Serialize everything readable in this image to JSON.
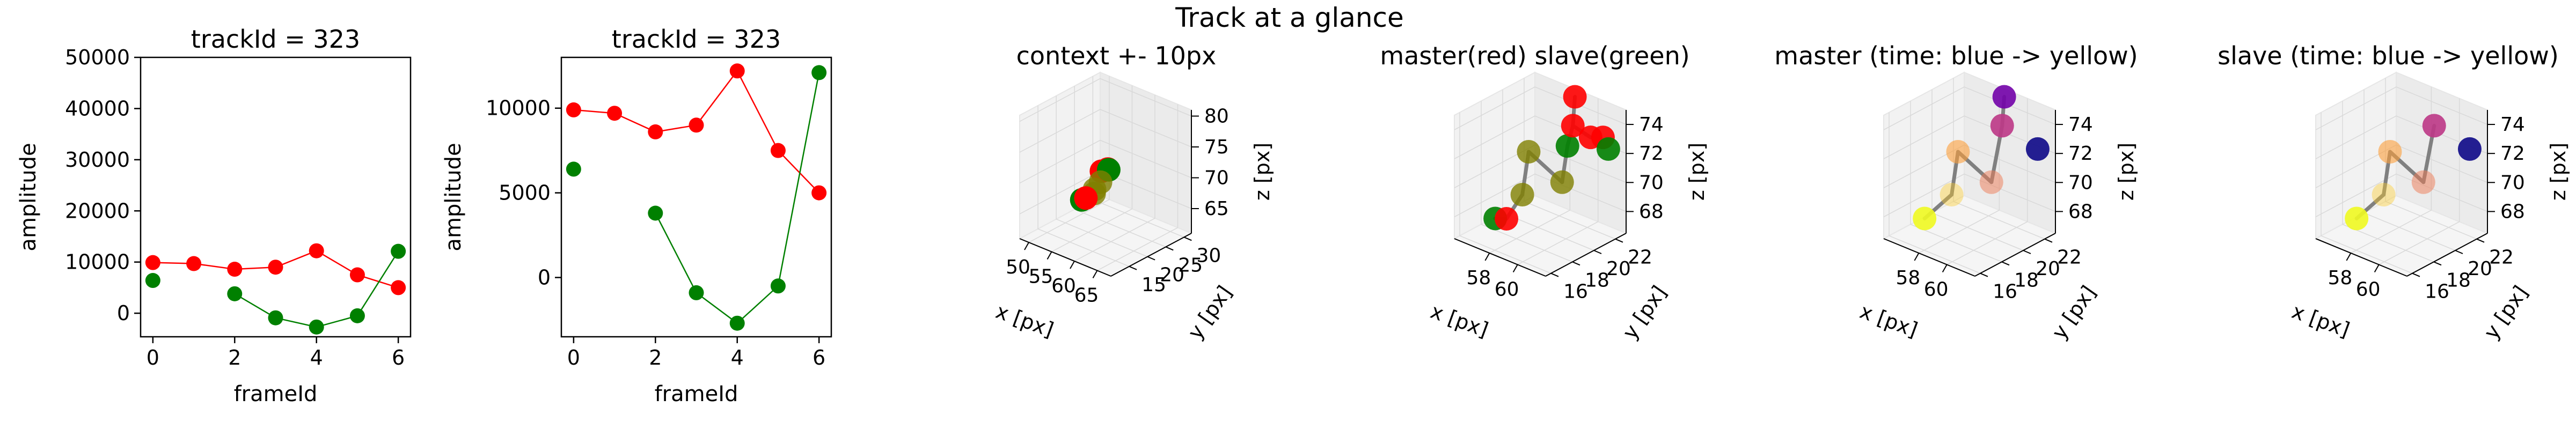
{
  "figure": {
    "suptitle": "Track at a glance"
  },
  "colors": {
    "master": "#ff0000",
    "slave": "#008000",
    "link": "#808080",
    "time_start": "#00008b",
    "time_end": "#ffff00"
  },
  "chart_data": [
    {
      "type": "line",
      "title": "trackId = 323",
      "xlabel": "frameId",
      "ylabel": "amplitude",
      "xlim": [
        -0.3,
        6.3
      ],
      "ylim": [
        -4600,
        50000
      ],
      "xticks": [
        0,
        2,
        4,
        6
      ],
      "yticks": [
        0,
        10000,
        20000,
        30000,
        40000,
        50000
      ],
      "series": [
        {
          "color": "#ff0000",
          "x": [
            0,
            1,
            2,
            3,
            4,
            5,
            6
          ],
          "y": [
            9900,
            9700,
            8600,
            9000,
            12200,
            7500,
            5000
          ]
        },
        {
          "color": "#008000",
          "x": [
            0,
            2,
            3,
            4,
            5,
            6
          ],
          "y": [
            6400,
            3800,
            -900,
            -2700,
            -500,
            12100
          ],
          "connect_from_index": 1
        }
      ]
    },
    {
      "type": "line",
      "title": "trackId = 323",
      "xlabel": "frameId",
      "ylabel": "amplitude",
      "xlim": [
        -0.3,
        6.3
      ],
      "ylim": [
        -3500,
        13000
      ],
      "xticks": [
        0,
        2,
        4,
        6
      ],
      "yticks": [
        0,
        5000,
        10000
      ],
      "series": [
        {
          "color": "#ff0000",
          "x": [
            0,
            1,
            2,
            3,
            4,
            5,
            6
          ],
          "y": [
            9900,
            9700,
            8600,
            9000,
            12200,
            7500,
            5000
          ]
        },
        {
          "color": "#008000",
          "x": [
            0,
            2,
            3,
            4,
            5,
            6
          ],
          "y": [
            6400,
            3800,
            -900,
            -2700,
            -500,
            12100
          ],
          "connect_from_index": 1
        }
      ]
    },
    {
      "type": "scatter",
      "projection": "3d",
      "title": "context +- 10px",
      "xlabel": "x [px]",
      "ylabel": "y [px]",
      "zlabel": "z [px]",
      "xlim": [
        48,
        68
      ],
      "ylim": [
        10,
        32
      ],
      "zlim": [
        61,
        81
      ],
      "xticks": [
        50,
        55,
        60,
        65
      ],
      "yticks": [
        15,
        20,
        25,
        30
      ],
      "zticks": [
        65,
        70,
        75,
        80
      ],
      "points": [
        {
          "x": 57.5,
          "y": 20.5,
          "z": 71.5,
          "color": "#ff0000",
          "alpha": 1.0
        },
        {
          "x": 58.5,
          "y": 21,
          "z": 72,
          "color": "#ff0000",
          "alpha": 1.0
        },
        {
          "x": 59.5,
          "y": 20,
          "z": 72.5,
          "color": "#008000",
          "alpha": 1.0
        },
        {
          "x": 58.5,
          "y": 19,
          "z": 70.5,
          "color": "#808000",
          "alpha": 0.8
        },
        {
          "x": 58,
          "y": 18,
          "z": 69.5,
          "color": "#808000",
          "alpha": 0.8
        },
        {
          "x": 57.5,
          "y": 18.5,
          "z": 68.5,
          "color": "#808000",
          "alpha": 0.8
        },
        {
          "x": 56,
          "y": 17,
          "z": 67.5,
          "color": "#008000",
          "alpha": 1.0
        },
        {
          "x": 56.5,
          "y": 17.5,
          "z": 67.8,
          "color": "#ff0000",
          "alpha": 1.0
        }
      ],
      "links": []
    },
    {
      "type": "scatter",
      "projection": "3d",
      "title": "master(red) slave(green)",
      "xlabel": "x [px]",
      "ylabel": "y [px]",
      "zlabel": "z [px]",
      "xlim": [
        55.5,
        62
      ],
      "ylim": [
        15.5,
        23
      ],
      "zlim": [
        66.5,
        75
      ],
      "xticks": [
        58,
        60
      ],
      "yticks": [
        16,
        18,
        20,
        22
      ],
      "zticks": [
        68,
        70,
        72,
        74
      ],
      "points": [
        {
          "x": 56.5,
          "y": 18,
          "z": 67.3,
          "color": "#008000",
          "alpha": 0.9
        },
        {
          "x": 57.3,
          "y": 18,
          "z": 67.6,
          "color": "#ff0000",
          "alpha": 0.9
        },
        {
          "x": 58.2,
          "y": 18.3,
          "z": 69.5,
          "color": "#808000",
          "alpha": 0.8
        },
        {
          "x": 58.5,
          "y": 18.5,
          "z": 72.5,
          "color": "#808000",
          "alpha": 0.8
        },
        {
          "x": 60.5,
          "y": 19,
          "z": 71,
          "color": "#808000",
          "alpha": 0.8
        },
        {
          "x": 60.5,
          "y": 19.5,
          "z": 73.3,
          "color": "#008000",
          "alpha": 0.9
        },
        {
          "x": 60.5,
          "y": 20,
          "z": 74.5,
          "color": "#ff0000",
          "alpha": 0.9
        },
        {
          "x": 61,
          "y": 21,
          "z": 73.5,
          "color": "#ff0000",
          "alpha": 0.9
        },
        {
          "x": 61.5,
          "y": 21.5,
          "z": 73.5,
          "color": "#ff0000",
          "alpha": 0.9
        },
        {
          "x": 59.5,
          "y": 21.5,
          "z": 75.5,
          "color": "#ff0000",
          "alpha": 0.9
        },
        {
          "x": 61.5,
          "y": 22,
          "z": 72.5,
          "color": "#008000",
          "alpha": 0.9
        }
      ],
      "links": [
        [
          0,
          1
        ],
        [
          1,
          2
        ],
        [
          2,
          3
        ],
        [
          3,
          4
        ],
        [
          4,
          5
        ],
        [
          5,
          6
        ],
        [
          6,
          9
        ],
        [
          6,
          7
        ]
      ]
    },
    {
      "type": "scatter",
      "projection": "3d",
      "title": "master (time: blue -> yellow)",
      "xlabel": "x [px]",
      "ylabel": "y [px]",
      "zlabel": "z [px]",
      "xlim": [
        55.5,
        62
      ],
      "ylim": [
        15.5,
        23
      ],
      "zlim": [
        66.5,
        75
      ],
      "xticks": [
        58,
        60
      ],
      "yticks": [
        16,
        18,
        20,
        22
      ],
      "zticks": [
        68,
        70,
        72,
        74
      ],
      "points": [
        {
          "x": 56.5,
          "y": 18,
          "z": 67.3,
          "color": "#f0f921",
          "alpha": 0.9
        },
        {
          "x": 58.2,
          "y": 18.3,
          "z": 69.5,
          "color": "#fdca26",
          "alpha": 0.4
        },
        {
          "x": 58.5,
          "y": 18.5,
          "z": 72.5,
          "color": "#fb9f3a",
          "alpha": 0.6
        },
        {
          "x": 60.5,
          "y": 19,
          "z": 71,
          "color": "#ed7953",
          "alpha": 0.5
        },
        {
          "x": 60.5,
          "y": 20,
          "z": 74.5,
          "color": "#bd3786",
          "alpha": 0.9
        },
        {
          "x": 59.5,
          "y": 21.5,
          "z": 75.5,
          "color": "#7201a8",
          "alpha": 0.9
        },
        {
          "x": 61.5,
          "y": 22,
          "z": 72.5,
          "color": "#0d0887",
          "alpha": 0.9
        }
      ],
      "links": [
        [
          0,
          1
        ],
        [
          1,
          2
        ],
        [
          2,
          3
        ],
        [
          3,
          4
        ],
        [
          4,
          5
        ]
      ]
    },
    {
      "type": "scatter",
      "projection": "3d",
      "title": "slave (time: blue -> yellow)",
      "xlabel": "x [px]",
      "ylabel": "y [px]",
      "zlabel": "z [px]",
      "xlim": [
        55.5,
        62
      ],
      "ylim": [
        15.5,
        23
      ],
      "zlim": [
        66.5,
        75
      ],
      "xticks": [
        58,
        60
      ],
      "yticks": [
        16,
        18,
        20,
        22
      ],
      "zticks": [
        68,
        70,
        72,
        74
      ],
      "points": [
        {
          "x": 56.5,
          "y": 18,
          "z": 67.3,
          "color": "#f0f921",
          "alpha": 0.9
        },
        {
          "x": 58.2,
          "y": 18.3,
          "z": 69.5,
          "color": "#fdca26",
          "alpha": 0.4
        },
        {
          "x": 58.5,
          "y": 18.5,
          "z": 72.5,
          "color": "#fb9f3a",
          "alpha": 0.6
        },
        {
          "x": 60.5,
          "y": 19,
          "z": 71,
          "color": "#ed7953",
          "alpha": 0.5
        },
        {
          "x": 60.5,
          "y": 20,
          "z": 74.5,
          "color": "#bd3786",
          "alpha": 0.9
        },
        {
          "x": 61.5,
          "y": 22,
          "z": 72.5,
          "color": "#0d0887",
          "alpha": 0.9
        }
      ],
      "links": [
        [
          0,
          1
        ],
        [
          1,
          2
        ],
        [
          2,
          3
        ],
        [
          3,
          4
        ]
      ]
    }
  ]
}
